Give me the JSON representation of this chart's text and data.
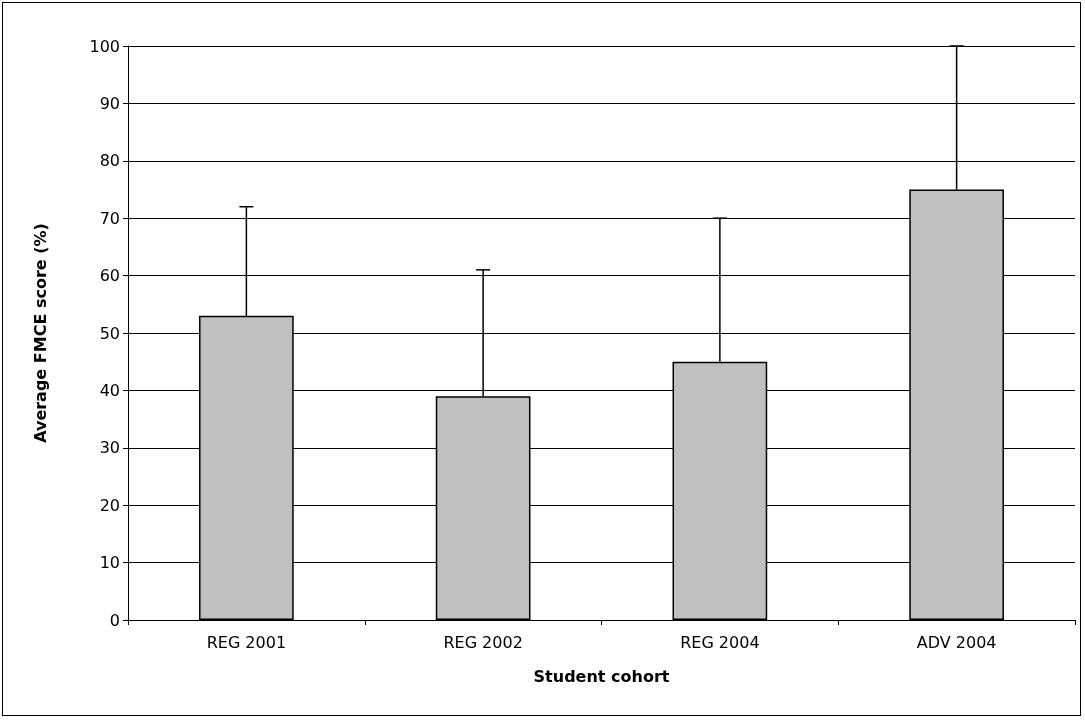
{
  "chart_data": {
    "type": "bar",
    "xlabel": "Student cohort",
    "ylabel": "Average FMCE score (%)",
    "categories": [
      "REG 2001",
      "REG 2002",
      "REG 2004",
      "ADV 2004"
    ],
    "values": [
      53,
      39,
      45,
      75
    ],
    "errors": [
      [
        53,
        72
      ],
      [
        39,
        61
      ],
      [
        45,
        70
      ],
      [
        75,
        100
      ]
    ],
    "color": "#c0c0c0",
    "ylim": [
      0,
      100
    ],
    "yticks": [
      0,
      10,
      20,
      30,
      40,
      50,
      60,
      70,
      80,
      90,
      100
    ],
    "grid": "y"
  }
}
